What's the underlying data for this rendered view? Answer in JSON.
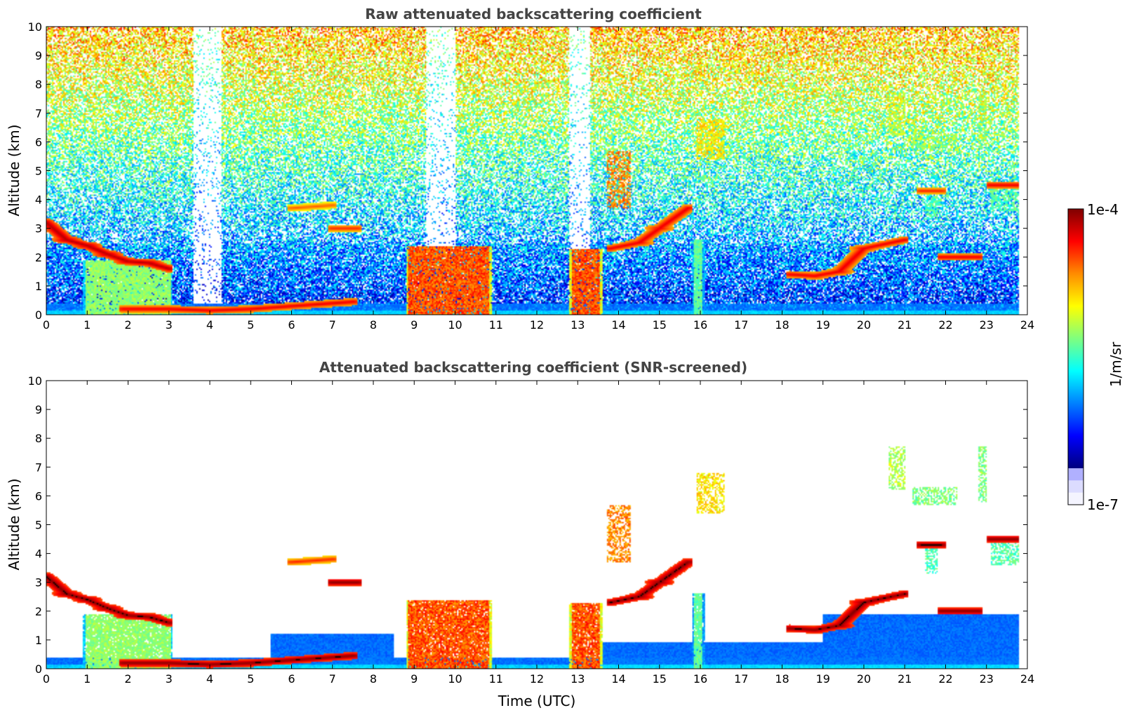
{
  "chart_data": [
    {
      "type": "heatmap",
      "title": "Raw attenuated backscattering coefficient",
      "xlabel": "",
      "ylabel": "Altitude (km)",
      "xlim": [
        0,
        24
      ],
      "ylim": [
        0,
        10
      ],
      "xticks": [
        "0",
        "1",
        "2",
        "3",
        "4",
        "5",
        "6",
        "7",
        "8",
        "9",
        "10",
        "11",
        "12",
        "13",
        "14",
        "15",
        "16",
        "17",
        "18",
        "19",
        "20",
        "21",
        "22",
        "23",
        "24"
      ],
      "yticks": [
        "0",
        "1",
        "2",
        "3",
        "4",
        "5",
        "6",
        "7",
        "8",
        "9",
        "10"
      ],
      "data_end_x": 23.8,
      "noise_fraction": 0.9,
      "features": [
        {
          "kind": "boundary-layer",
          "x0": 0,
          "x1": 23.8,
          "top": 0.4
        },
        {
          "kind": "cloud-line",
          "points": [
            [
              0,
              3.2
            ],
            [
              0.5,
              2.6
            ],
            [
              1,
              2.4
            ],
            [
              1.5,
              2.1
            ],
            [
              2,
              1.85
            ],
            [
              2.5,
              1.8
            ],
            [
              3,
              1.6
            ]
          ],
          "value": 0.95
        },
        {
          "kind": "cloud-line",
          "points": [
            [
              1.9,
              0.2
            ],
            [
              3,
              0.2
            ],
            [
              4,
              0.15
            ],
            [
              5,
              0.2
            ],
            [
              6,
              0.3
            ],
            [
              7,
              0.4
            ],
            [
              7.5,
              0.45
            ]
          ],
          "value": 0.9
        },
        {
          "kind": "cloud-line",
          "points": [
            [
              6,
              3.7
            ],
            [
              7,
              3.8
            ]
          ],
          "value": 0.8
        },
        {
          "kind": "cloud-line",
          "points": [
            [
              7,
              3.0
            ],
            [
              7.6,
              3.0
            ]
          ],
          "value": 0.85
        },
        {
          "kind": "cloud-line",
          "points": [
            [
              13.8,
              2.3
            ],
            [
              14.5,
              2.5
            ],
            [
              15,
              3.0
            ],
            [
              15.7,
              3.7
            ]
          ],
          "value": 0.9
        },
        {
          "kind": "cloud-line",
          "points": [
            [
              18.2,
              1.4
            ],
            [
              18.8,
              1.35
            ],
            [
              19.4,
              1.5
            ],
            [
              20,
              2.3
            ],
            [
              21,
              2.6
            ]
          ],
          "value": 0.9
        },
        {
          "kind": "cloud-line",
          "points": [
            [
              21.9,
              2.0
            ],
            [
              22.8,
              2.0
            ]
          ],
          "value": 0.9
        },
        {
          "kind": "cloud-line",
          "points": [
            [
              23.1,
              4.5
            ],
            [
              23.8,
              4.5
            ]
          ],
          "value": 0.9
        },
        {
          "kind": "cloud-line",
          "points": [
            [
              21.4,
              4.3
            ],
            [
              21.9,
              4.3
            ]
          ],
          "value": 0.85
        },
        {
          "kind": "rain-column",
          "x0": 8.8,
          "x1": 10.9,
          "top": 2.4,
          "value": 0.85
        },
        {
          "kind": "rain-column",
          "x0": 12.8,
          "x1": 13.6,
          "top": 2.3,
          "value": 0.85
        },
        {
          "kind": "rain-column",
          "x0": 0.9,
          "x1": 3.1,
          "top": 1.9,
          "value": 0.55
        },
        {
          "kind": "rain-column",
          "x0": 15.8,
          "x1": 16.1,
          "top": 2.6,
          "value": 0.5
        },
        {
          "kind": "cirrus",
          "x0": 13.7,
          "x1": 14.3,
          "y0": 3.7,
          "y1": 5.7,
          "value": 0.75
        },
        {
          "kind": "cirrus",
          "x0": 15.9,
          "x1": 16.6,
          "y0": 5.4,
          "y1": 6.8,
          "value": 0.65
        },
        {
          "kind": "cirrus",
          "x0": 20.6,
          "x1": 21.0,
          "y0": 6.2,
          "y1": 7.7,
          "value": 0.55
        },
        {
          "kind": "cirrus",
          "x0": 21.2,
          "x1": 22.3,
          "y0": 5.7,
          "y1": 6.3,
          "value": 0.5
        },
        {
          "kind": "cirrus",
          "x0": 22.8,
          "x1": 23.0,
          "y0": 5.8,
          "y1": 7.7,
          "value": 0.5
        },
        {
          "kind": "cirrus",
          "x0": 21.5,
          "x1": 21.8,
          "y0": 3.3,
          "y1": 4.3,
          "value": 0.45
        },
        {
          "kind": "cirrus",
          "x0": 23.1,
          "x1": 23.8,
          "y0": 3.6,
          "y1": 4.4,
          "value": 0.45
        },
        {
          "kind": "clear-column",
          "x0": 9.3,
          "x1": 10.0,
          "y0": 2.4,
          "y1": 10
        },
        {
          "kind": "clear-column",
          "x0": 12.8,
          "x1": 13.3,
          "y0": 2.3,
          "y1": 10
        },
        {
          "kind": "clear-column",
          "x0": 3.6,
          "x1": 4.3,
          "y0": 0.3,
          "y1": 10
        }
      ]
    },
    {
      "type": "heatmap",
      "title": "Attenuated backscattering coefficient (SNR-screened)",
      "xlabel": "Time (UTC)",
      "ylabel": "Altitude (km)",
      "xlim": [
        0,
        24
      ],
      "ylim": [
        0,
        10
      ],
      "xticks": [
        "0",
        "1",
        "2",
        "3",
        "4",
        "5",
        "6",
        "7",
        "8",
        "9",
        "10",
        "11",
        "12",
        "13",
        "14",
        "15",
        "16",
        "17",
        "18",
        "19",
        "20",
        "21",
        "22",
        "23",
        "24"
      ],
      "yticks": [
        "0",
        "1",
        "2",
        "3",
        "4",
        "5",
        "6",
        "7",
        "8",
        "9",
        "10"
      ],
      "data_end_x": 23.8,
      "noise_fraction": 0.0,
      "features": [
        {
          "kind": "boundary-layer",
          "x0": 0,
          "x1": 23.8,
          "top": 0.4
        },
        {
          "kind": "boundary-layer",
          "x0": 5.5,
          "x1": 8.5,
          "top": 1.2
        },
        {
          "kind": "boundary-layer",
          "x0": 13.6,
          "x1": 19.0,
          "top": 0.9
        },
        {
          "kind": "boundary-layer",
          "x0": 19.0,
          "x1": 23.8,
          "top": 1.9
        },
        {
          "kind": "cloud-line",
          "points": [
            [
              0,
              3.2
            ],
            [
              0.5,
              2.6
            ],
            [
              1,
              2.4
            ],
            [
              1.5,
              2.1
            ],
            [
              2,
              1.85
            ],
            [
              2.5,
              1.8
            ],
            [
              3,
              1.6
            ]
          ],
          "value": 1.0
        },
        {
          "kind": "cloud-line",
          "points": [
            [
              1.9,
              0.2
            ],
            [
              3,
              0.2
            ],
            [
              4,
              0.15
            ],
            [
              5,
              0.2
            ],
            [
              6,
              0.3
            ],
            [
              7,
              0.4
            ],
            [
              7.5,
              0.45
            ]
          ],
          "value": 1.0
        },
        {
          "kind": "cloud-line",
          "points": [
            [
              6,
              3.7
            ],
            [
              7,
              3.8
            ]
          ],
          "value": 0.85
        },
        {
          "kind": "cloud-line",
          "points": [
            [
              7,
              3.0
            ],
            [
              7.6,
              3.0
            ]
          ],
          "value": 1.0
        },
        {
          "kind": "cloud-line",
          "points": [
            [
              13.8,
              2.3
            ],
            [
              14.5,
              2.5
            ],
            [
              15,
              3.0
            ],
            [
              15.7,
              3.7
            ]
          ],
          "value": 1.0
        },
        {
          "kind": "cloud-line",
          "points": [
            [
              18.2,
              1.4
            ],
            [
              18.8,
              1.35
            ],
            [
              19.4,
              1.5
            ],
            [
              20,
              2.3
            ],
            [
              21,
              2.6
            ]
          ],
          "value": 1.0
        },
        {
          "kind": "cloud-line",
          "points": [
            [
              21.9,
              2.0
            ],
            [
              22.8,
              2.0
            ]
          ],
          "value": 1.0
        },
        {
          "kind": "cloud-line",
          "points": [
            [
              23.1,
              4.5
            ],
            [
              23.8,
              4.5
            ]
          ],
          "value": 1.0
        },
        {
          "kind": "cloud-line",
          "points": [
            [
              21.4,
              4.3
            ],
            [
              21.9,
              4.3
            ]
          ],
          "value": 1.0
        },
        {
          "kind": "rain-column",
          "x0": 8.8,
          "x1": 10.9,
          "top": 2.4,
          "value": 0.85
        },
        {
          "kind": "rain-column",
          "x0": 12.8,
          "x1": 13.6,
          "top": 2.3,
          "value": 0.85
        },
        {
          "kind": "rain-column",
          "x0": 0.9,
          "x1": 3.1,
          "top": 1.9,
          "value": 0.55
        },
        {
          "kind": "rain-column",
          "x0": 15.8,
          "x1": 16.1,
          "top": 2.6,
          "value": 0.5
        },
        {
          "kind": "cirrus",
          "x0": 13.7,
          "x1": 14.3,
          "y0": 3.7,
          "y1": 5.7,
          "value": 0.75
        },
        {
          "kind": "cirrus",
          "x0": 15.9,
          "x1": 16.6,
          "y0": 5.4,
          "y1": 6.8,
          "value": 0.65
        },
        {
          "kind": "cirrus",
          "x0": 20.6,
          "x1": 21.0,
          "y0": 6.2,
          "y1": 7.7,
          "value": 0.55
        },
        {
          "kind": "cirrus",
          "x0": 21.2,
          "x1": 22.3,
          "y0": 5.7,
          "y1": 6.3,
          "value": 0.5
        },
        {
          "kind": "cirrus",
          "x0": 22.8,
          "x1": 23.0,
          "y0": 5.8,
          "y1": 7.7,
          "value": 0.5
        },
        {
          "kind": "cirrus",
          "x0": 21.5,
          "x1": 21.8,
          "y0": 3.3,
          "y1": 4.3,
          "value": 0.45
        },
        {
          "kind": "cirrus",
          "x0": 23.1,
          "x1": 23.8,
          "y0": 3.6,
          "y1": 4.4,
          "value": 0.45
        }
      ]
    }
  ],
  "colorbar": {
    "label": "1/m/sr",
    "max_label": "1e-4",
    "min_label": "1e-7",
    "scale": "log",
    "colormap": [
      "#7f0000",
      "#ff0000",
      "#ff8c00",
      "#ffff00",
      "#7fff7f",
      "#00ffff",
      "#0080ff",
      "#0000ff",
      "#00007f"
    ],
    "low_end_colors": [
      "#b0b0ff",
      "#dcdcff",
      "#f4f4ff"
    ]
  }
}
